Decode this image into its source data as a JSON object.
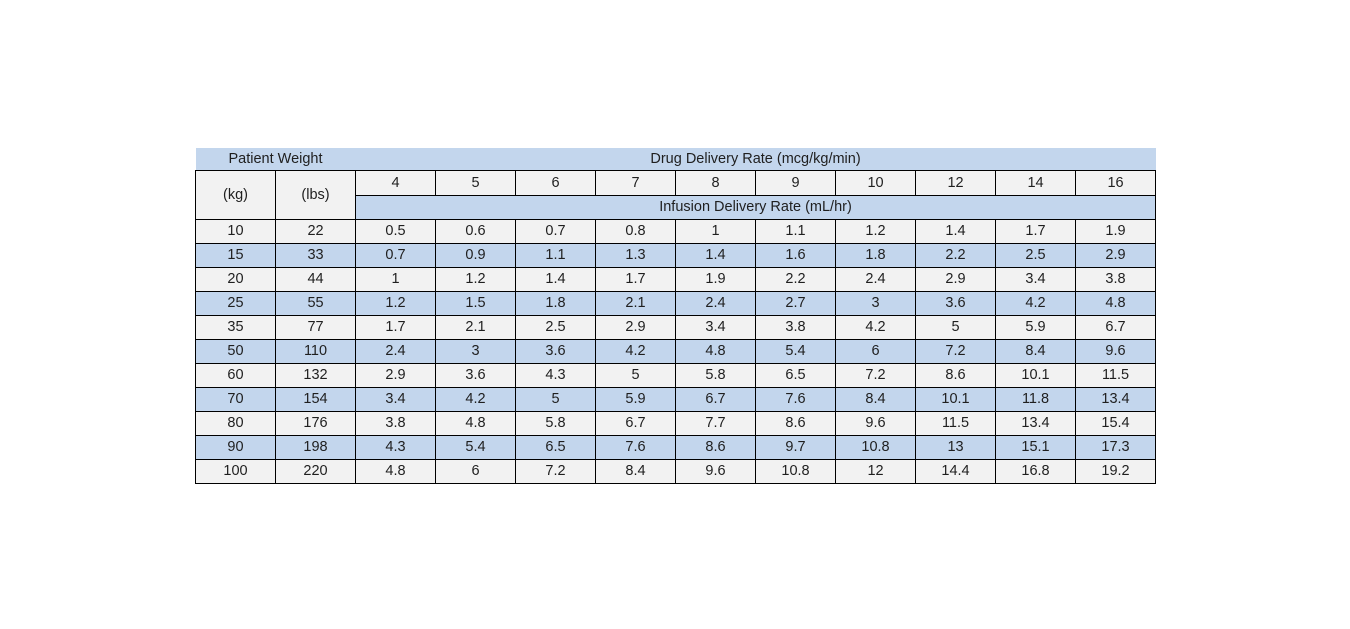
{
  "table": {
    "header": {
      "patient_weight_label": "Patient Weight",
      "drug_rate_label": "Drug Delivery Rate (mcg/kg/min)",
      "kg_label": "(kg)",
      "lbs_label": "(lbs)",
      "infusion_rate_label": "Infusion Delivery Rate (mL/hr)",
      "rate_columns": [
        "4",
        "5",
        "6",
        "7",
        "8",
        "9",
        "10",
        "12",
        "14",
        "16"
      ]
    },
    "rows": [
      {
        "kg": "10",
        "lbs": "22",
        "values": [
          "0.5",
          "0.6",
          "0.7",
          "0.8",
          "1",
          "1.1",
          "1.2",
          "1.4",
          "1.7",
          "1.9"
        ]
      },
      {
        "kg": "15",
        "lbs": "33",
        "values": [
          "0.7",
          "0.9",
          "1.1",
          "1.3",
          "1.4",
          "1.6",
          "1.8",
          "2.2",
          "2.5",
          "2.9"
        ]
      },
      {
        "kg": "20",
        "lbs": "44",
        "values": [
          "1",
          "1.2",
          "1.4",
          "1.7",
          "1.9",
          "2.2",
          "2.4",
          "2.9",
          "3.4",
          "3.8"
        ]
      },
      {
        "kg": "25",
        "lbs": "55",
        "values": [
          "1.2",
          "1.5",
          "1.8",
          "2.1",
          "2.4",
          "2.7",
          "3",
          "3.6",
          "4.2",
          "4.8"
        ]
      },
      {
        "kg": "35",
        "lbs": "77",
        "values": [
          "1.7",
          "2.1",
          "2.5",
          "2.9",
          "3.4",
          "3.8",
          "4.2",
          "5",
          "5.9",
          "6.7"
        ]
      },
      {
        "kg": "50",
        "lbs": "110",
        "values": [
          "2.4",
          "3",
          "3.6",
          "4.2",
          "4.8",
          "5.4",
          "6",
          "7.2",
          "8.4",
          "9.6"
        ]
      },
      {
        "kg": "60",
        "lbs": "132",
        "values": [
          "2.9",
          "3.6",
          "4.3",
          "5",
          "5.8",
          "6.5",
          "7.2",
          "8.6",
          "10.1",
          "11.5"
        ]
      },
      {
        "kg": "70",
        "lbs": "154",
        "values": [
          "3.4",
          "4.2",
          "5",
          "5.9",
          "6.7",
          "7.6",
          "8.4",
          "10.1",
          "11.8",
          "13.4"
        ]
      },
      {
        "kg": "80",
        "lbs": "176",
        "values": [
          "3.8",
          "4.8",
          "5.8",
          "6.7",
          "7.7",
          "8.6",
          "9.6",
          "11.5",
          "13.4",
          "15.4"
        ]
      },
      {
        "kg": "90",
        "lbs": "198",
        "values": [
          "4.3",
          "5.4",
          "6.5",
          "7.6",
          "8.6",
          "9.7",
          "10.8",
          "13",
          "15.1",
          "17.3"
        ]
      },
      {
        "kg": "100",
        "lbs": "220",
        "values": [
          "4.8",
          "6",
          "7.2",
          "8.4",
          "9.6",
          "10.8",
          "12",
          "14.4",
          "16.8",
          "19.2"
        ]
      }
    ],
    "colors": {
      "band_blue": "#c3d6ed",
      "band_gray": "#f2f2f2",
      "border": "#000000",
      "text": "#1f1f1f"
    }
  }
}
